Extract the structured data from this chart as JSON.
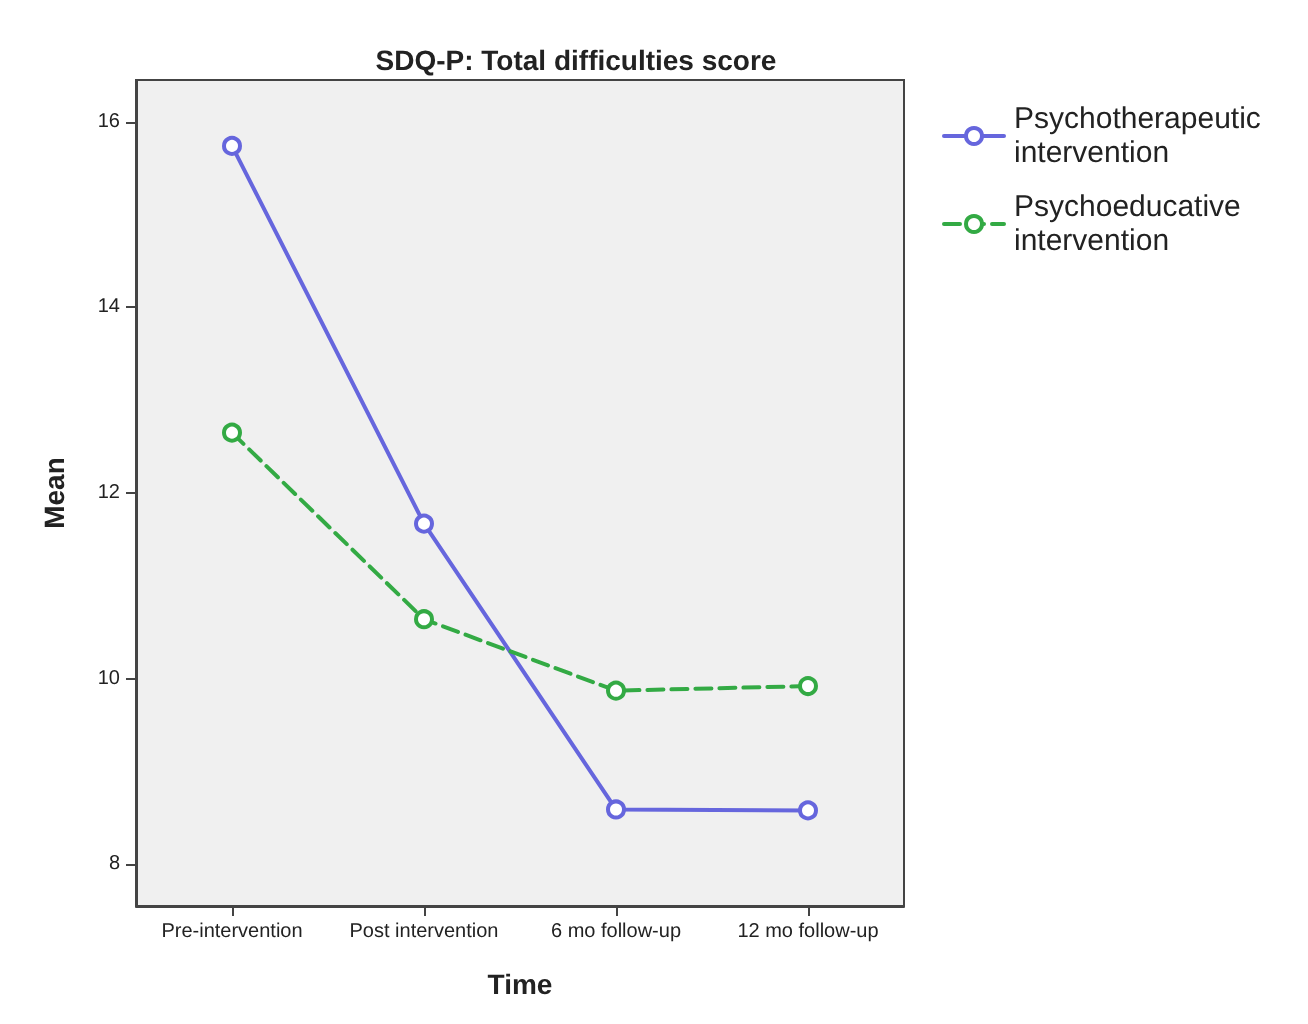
{
  "chart_data": {
    "type": "line",
    "title": "SDQ-P: Total difficulties score",
    "xlabel": "Time",
    "ylabel": "Mean",
    "categories": [
      "Pre-intervention",
      "Post intervention",
      "6 mo follow-up",
      "12 mo follow-up"
    ],
    "series": [
      {
        "name": "Psychotherapeutic intervention",
        "color": "#6666dd",
        "values": [
          15.74,
          11.67,
          8.59,
          8.58
        ],
        "line_style": "solid"
      },
      {
        "name": "Psychoeducative intervention",
        "color": "#33aa44",
        "values": [
          12.65,
          10.64,
          9.87,
          9.92
        ],
        "line_style": "dashed"
      }
    ],
    "ylim": [
      7.55,
      16.45
    ],
    "yticks": [
      8,
      10,
      12,
      14,
      16
    ],
    "grid": false,
    "legend": "right",
    "marker": "circle"
  }
}
